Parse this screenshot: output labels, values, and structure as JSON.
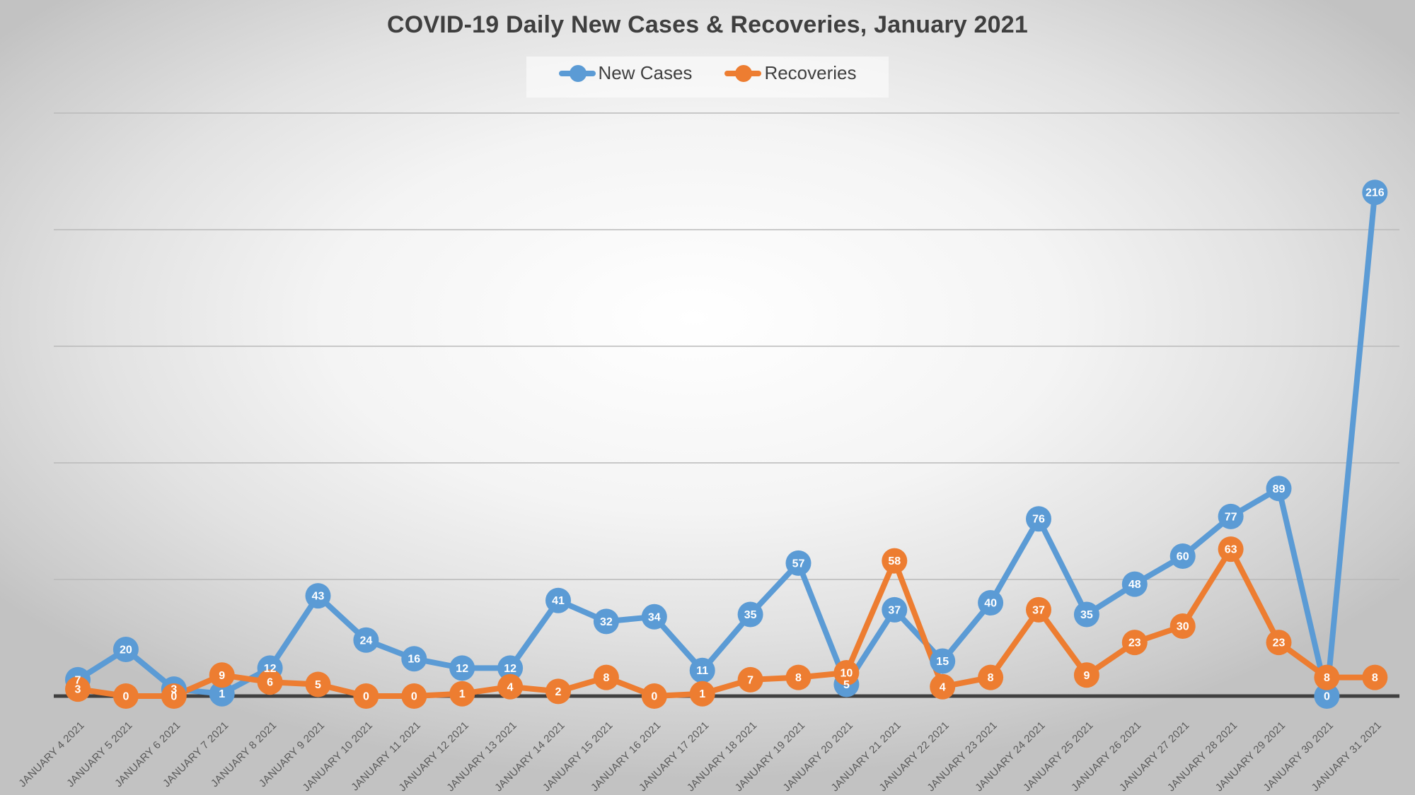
{
  "title": "COVID-19 Daily New Cases & Recoveries, January 2021",
  "colors": {
    "new_cases": "#5B9BD5",
    "recoveries": "#ED7D31",
    "axis_line": "#404040",
    "gridline": "#b9b9b9",
    "axis_label_text": "#595959",
    "title_text": "#3f3f3f",
    "marker_label_text": "#ffffff"
  },
  "chart_data": {
    "type": "line",
    "title": "COVID-19 Daily New Cases & Recoveries, January 2021",
    "xlabel": "",
    "ylabel": "",
    "ylim": [
      0,
      250
    ],
    "gridline_interval": 50,
    "grid": true,
    "y_axis_labels_visible": false,
    "legend_position": "top",
    "data_labels": "on-marker",
    "categories": [
      "JANUARY 4 2021",
      "JANUARY 5 2021",
      "JANUARY 6 2021",
      "JANUARY 7 2021",
      "JANUARY 8 2021",
      "JANUARY 9 2021",
      "JANUARY 10 2021",
      "JANUARY 11 2021",
      "JANUARY 12 2021",
      "JANUARY 13 2021",
      "JANUARY 14 2021",
      "JANUARY 15 2021",
      "JANUARY 16 2021",
      "JANUARY 17 2021",
      "JANUARY 18 2021",
      "JANUARY 19 2021",
      "JANUARY 20 2021",
      "JANUARY 21 2021",
      "JANUARY 22 2021",
      "JANUARY 23 2021",
      "JANUARY 24 2021",
      "JANUARY 25 2021",
      "JANUARY 26 2021",
      "JANUARY 27 2021",
      "JANUARY 28 2021",
      "JANUARY 29 2021",
      "JANUARY 30 2021",
      "JANUARY 31 2021"
    ],
    "series": [
      {
        "name": "New Cases",
        "color": "#5B9BD5",
        "values": [
          7,
          20,
          3,
          1,
          12,
          43,
          24,
          16,
          12,
          12,
          41,
          32,
          34,
          11,
          35,
          57,
          5,
          37,
          15,
          40,
          76,
          35,
          48,
          60,
          77,
          89,
          0,
          216
        ]
      },
      {
        "name": "Recoveries",
        "color": "#ED7D31",
        "values": [
          3,
          0,
          0,
          9,
          6,
          5,
          0,
          0,
          1,
          4,
          2,
          8,
          0,
          1,
          7,
          8,
          10,
          58,
          4,
          8,
          37,
          9,
          23,
          30,
          63,
          23,
          8,
          8
        ]
      }
    ]
  }
}
